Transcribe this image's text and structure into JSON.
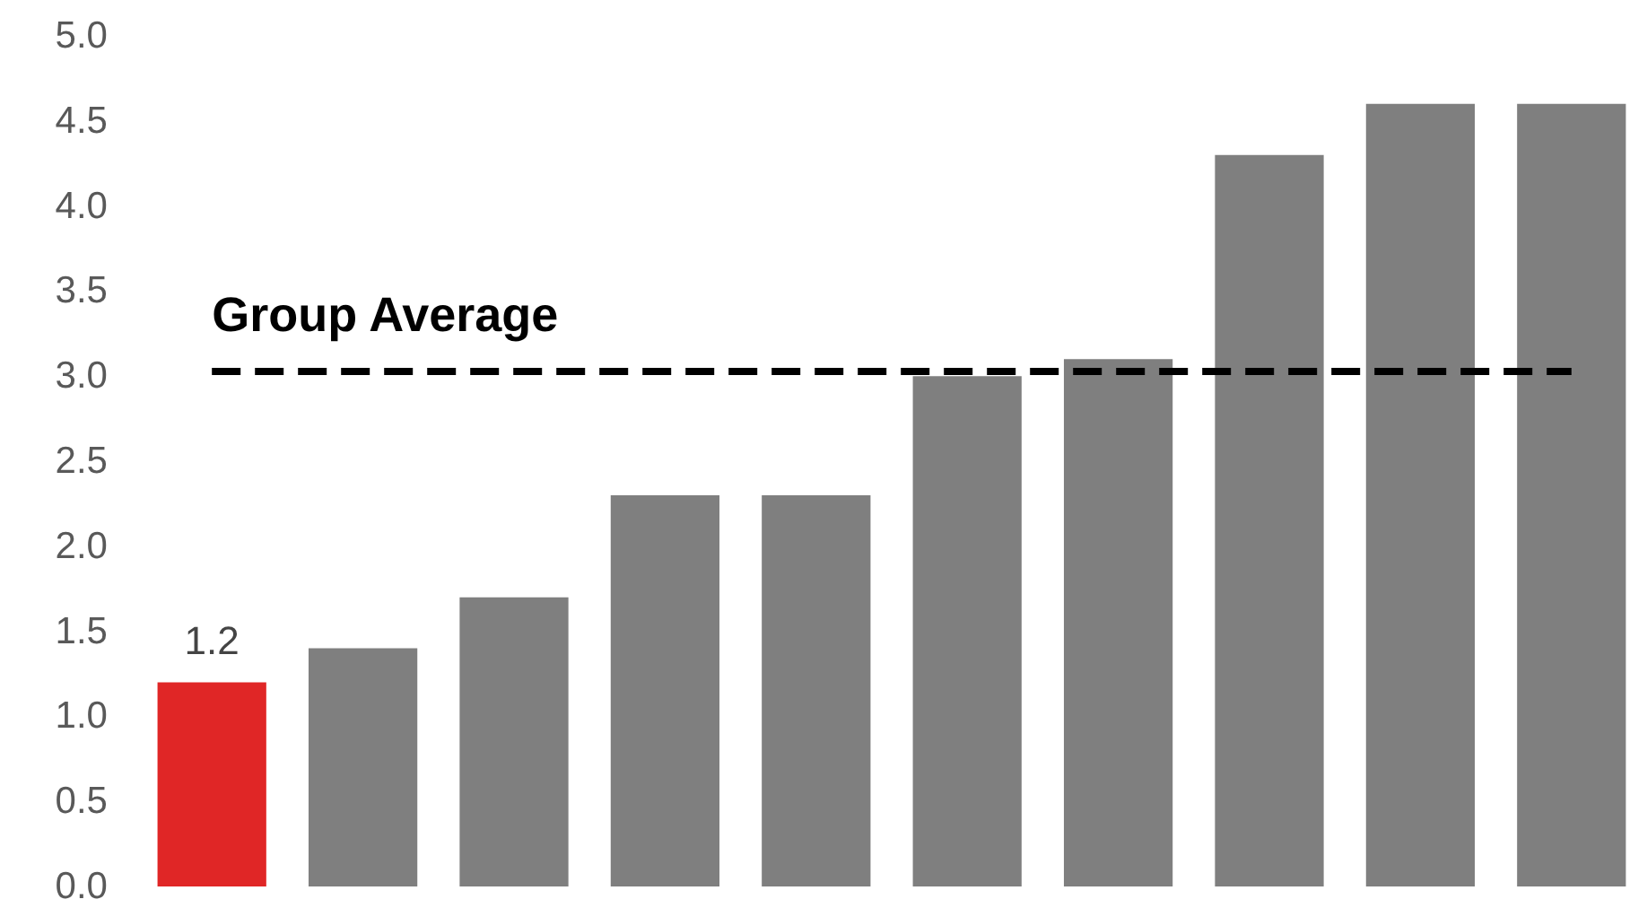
{
  "chart_data": {
    "type": "bar",
    "categories": [
      null,
      null,
      null,
      null,
      null,
      null,
      null,
      null,
      null,
      null
    ],
    "values": [
      1.2,
      1.4,
      1.7,
      2.3,
      2.3,
      3.0,
      3.1,
      4.3,
      4.6,
      4.6
    ],
    "colors": [
      "#e02626",
      "#7f7f7f",
      "#7f7f7f",
      "#7f7f7f",
      "#7f7f7f",
      "#7f7f7f",
      "#7f7f7f",
      "#7f7f7f",
      "#7f7f7f",
      "#7f7f7f"
    ],
    "value_labels": [
      "1.2",
      null,
      null,
      null,
      null,
      null,
      null,
      null,
      null,
      null
    ],
    "ylim": [
      0,
      5
    ],
    "yticks": [
      {
        "value": 0,
        "label": "0.0"
      },
      {
        "value": 0.5,
        "label": "0.5"
      },
      {
        "value": 1,
        "label": "1.0"
      },
      {
        "value": 1.5,
        "label": "1.5"
      },
      {
        "value": 2,
        "label": "2.0"
      },
      {
        "value": 2.5,
        "label": "2.5"
      },
      {
        "value": 3,
        "label": "3.0"
      },
      {
        "value": 3.5,
        "label": "3.5"
      },
      {
        "value": 4,
        "label": "4.0"
      },
      {
        "value": 4.5,
        "label": "4.5"
      },
      {
        "value": 5,
        "label": "5.0"
      }
    ],
    "ref_lines": [
      {
        "axis": "y",
        "value": 3.03,
        "label": "Group Average",
        "color": "#000000",
        "line_style": "dashed"
      }
    ],
    "grid": false,
    "tick_labels": "y"
  }
}
